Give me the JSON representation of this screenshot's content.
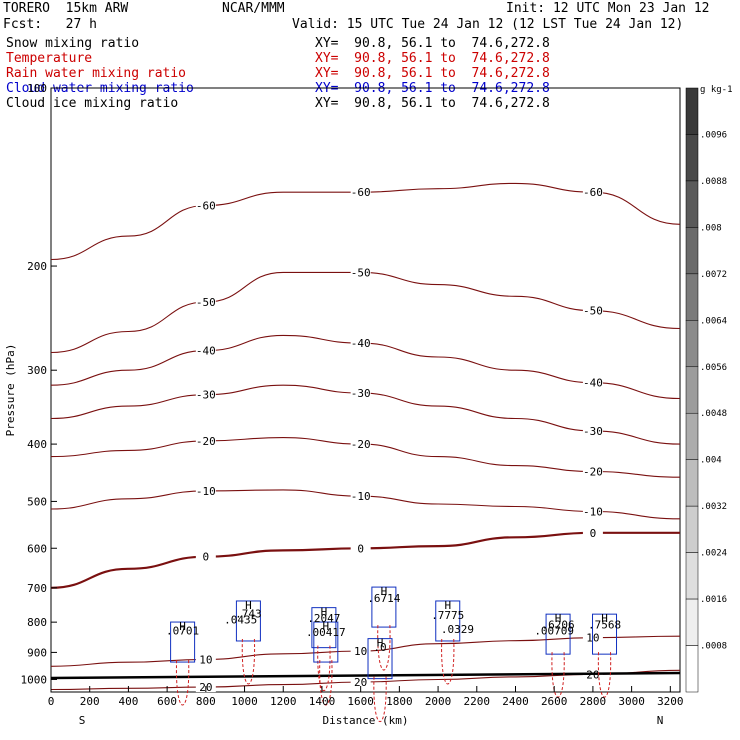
{
  "header": {
    "model": "TORERO  15km ARW",
    "org": "NCAR/MMM",
    "init": "Init: 12 UTC Mon 23 Jan 12",
    "fcst": "Fcst:   27 h",
    "valid": "Valid: 15 UTC Tue 24 Jan 12 (12 LST Tue 24 Jan 12)"
  },
  "fields": [
    {
      "name": "Snow mixing ratio",
      "xy": "XY=  90.8, 56.1 to  74.6,272.8",
      "color": "#000000"
    },
    {
      "name": "Temperature",
      "xy": "XY=  90.8, 56.1 to  74.6,272.8",
      "color": "#cc0000"
    },
    {
      "name": "Rain water mixing ratio",
      "xy": "XY=  90.8, 56.1 to  74.6,272.8",
      "color": "#cc0000"
    },
    {
      "name": "Cloud water mixing ratio",
      "xy": "XY=  90.8, 56.1 to  74.6,272.8",
      "color": "#0000cc"
    },
    {
      "name": "Cloud ice mixing ratio",
      "xy": "XY=  90.8, 56.1 to  74.6,272.8",
      "color": "#000000"
    }
  ],
  "chart_data": {
    "type": "contour-cross-section",
    "xlabel": "Distance (km)",
    "ylabel": "Pressure (hPa)",
    "xlim": [
      0,
      3250
    ],
    "ylim": [
      1050,
      100
    ],
    "x_ticks": [
      0,
      200,
      400,
      600,
      800,
      1000,
      1200,
      1400,
      1600,
      1800,
      2000,
      2200,
      2400,
      2600,
      2800,
      3000,
      3200
    ],
    "y_ticks": [
      100,
      200,
      300,
      400,
      500,
      600,
      700,
      800,
      900,
      1000
    ],
    "y_scale": "log",
    "x_end_labels": {
      "left": "S",
      "right": "N"
    },
    "colorbar": {
      "unit": "g kg-1",
      "labels": [
        ".0008",
        ".0016",
        ".0024",
        ".0032",
        ".004",
        ".0048",
        ".0056",
        ".0064",
        ".0072",
        ".008",
        ".0088",
        ".0096"
      ]
    },
    "temperature_contours": [
      {
        "level": -60,
        "x": [
          0,
          400,
          800,
          1200,
          1600,
          2000,
          2400,
          2800,
          3250
        ],
        "p": [
          195,
          178,
          158,
          150,
          150,
          148,
          145,
          150,
          170
        ]
      },
      {
        "level": -50,
        "x": [
          0,
          400,
          800,
          1200,
          1600,
          2000,
          2400,
          2800,
          3250
        ],
        "p": [
          280,
          258,
          230,
          205,
          205,
          215,
          225,
          238,
          255
        ]
      },
      {
        "level": -40,
        "x": [
          0,
          400,
          800,
          1200,
          1600,
          2000,
          2400,
          2800,
          3250
        ],
        "p": [
          318,
          300,
          278,
          262,
          270,
          285,
          300,
          315,
          335
        ]
      },
      {
        "level": -30,
        "x": [
          0,
          400,
          800,
          1200,
          1600,
          2000,
          2400,
          2800,
          3250
        ],
        "p": [
          362,
          345,
          330,
          318,
          328,
          345,
          362,
          380,
          400
        ]
      },
      {
        "level": -20,
        "x": [
          0,
          400,
          800,
          1200,
          1600,
          2000,
          2400,
          2800,
          3250
        ],
        "p": [
          420,
          410,
          395,
          390,
          400,
          420,
          435,
          445,
          455
        ]
      },
      {
        "level": -10,
        "x": [
          0,
          400,
          800,
          1200,
          1600,
          2000,
          2400,
          2800,
          3250
        ],
        "p": [
          515,
          495,
          480,
          478,
          490,
          505,
          510,
          520,
          535
        ]
      },
      {
        "level": 0,
        "x": [
          0,
          400,
          800,
          1200,
          1600,
          2000,
          2400,
          2800,
          3250
        ],
        "p": [
          700,
          650,
          620,
          605,
          600,
          595,
          575,
          565,
          565
        ]
      },
      {
        "level": 10,
        "x": [
          0,
          400,
          800,
          1200,
          1600,
          2000,
          2400,
          2800,
          3250
        ],
        "p": [
          950,
          935,
          925,
          905,
          895,
          870,
          860,
          850,
          845
        ]
      },
      {
        "level": 20,
        "x": [
          0,
          400,
          800,
          1200,
          1600,
          2000,
          2400,
          2800,
          3250
        ],
        "p": [
          1040,
          1035,
          1030,
          1020,
          1010,
          1000,
          990,
          980,
          965
        ]
      }
    ],
    "cell_labels": [
      {
        "x": 680,
        "p": 825,
        "text": "H"
      },
      {
        "x": 680,
        "p": 840,
        "text": ".0701"
      },
      {
        "x": 1020,
        "p": 760,
        "text": "H"
      },
      {
        "x": 1020,
        "p": 785,
        "text": ".743"
      },
      {
        "x": 980,
        "p": 805,
        "text": ".0435"
      },
      {
        "x": 1410,
        "p": 780,
        "text": "H"
      },
      {
        "x": 1410,
        "p": 800,
        "text": ".2047"
      },
      {
        "x": 1420,
        "p": 825,
        "text": "H"
      },
      {
        "x": 1420,
        "p": 845,
        "text": ".00417"
      },
      {
        "x": 1720,
        "p": 720,
        "text": "H"
      },
      {
        "x": 1720,
        "p": 740,
        "text": ".6714"
      },
      {
        "x": 1700,
        "p": 880,
        "text": "H"
      },
      {
        "x": 1700,
        "p": 895,
        "text": ".0"
      },
      {
        "x": 2050,
        "p": 760,
        "text": "H"
      },
      {
        "x": 2050,
        "p": 790,
        "text": ".7775"
      },
      {
        "x": 2100,
        "p": 835,
        "text": ".0329"
      },
      {
        "x": 2620,
        "p": 800,
        "text": "H"
      },
      {
        "x": 2620,
        "p": 820,
        "text": ".6206"
      },
      {
        "x": 2600,
        "p": 840,
        "text": ".00709"
      },
      {
        "x": 2860,
        "p": 800,
        "text": "H"
      },
      {
        "x": 2860,
        "p": 820,
        "text": ".7568"
      }
    ]
  }
}
